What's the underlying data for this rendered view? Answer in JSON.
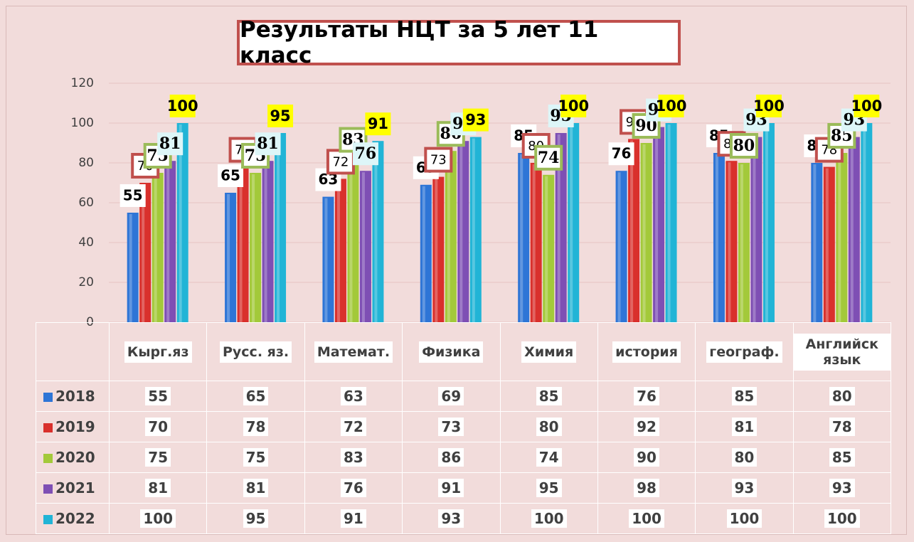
{
  "chart_data": {
    "type": "bar",
    "title": "Результаты НЦТ за 5 лет 11 класс",
    "categories": [
      "Кырг.яз",
      "Русс. яз.",
      "Математ.",
      "Физика",
      "Химия",
      "история",
      "географ.",
      "Английск язык"
    ],
    "series": [
      {
        "name": "2018",
        "color": "#2e75d6",
        "values": [
          55,
          65,
          63,
          69,
          85,
          76,
          85,
          80
        ]
      },
      {
        "name": "2019",
        "color": "#d9302c",
        "values": [
          70,
          78,
          72,
          73,
          80,
          92,
          81,
          78
        ]
      },
      {
        "name": "2020",
        "color": "#a3c93a",
        "values": [
          75,
          75,
          83,
          86,
          74,
          90,
          80,
          85
        ]
      },
      {
        "name": "2021",
        "color": "#7e4fb4",
        "values": [
          81,
          81,
          76,
          91,
          95,
          98,
          93,
          93
        ]
      },
      {
        "name": "2022",
        "color": "#21b4d6",
        "values": [
          100,
          95,
          91,
          93,
          100,
          100,
          100,
          100
        ]
      }
    ],
    "ylim": [
      0,
      120
    ],
    "yticks": [
      0,
      20,
      40,
      60,
      80,
      100,
      120
    ],
    "grid": true
  }
}
